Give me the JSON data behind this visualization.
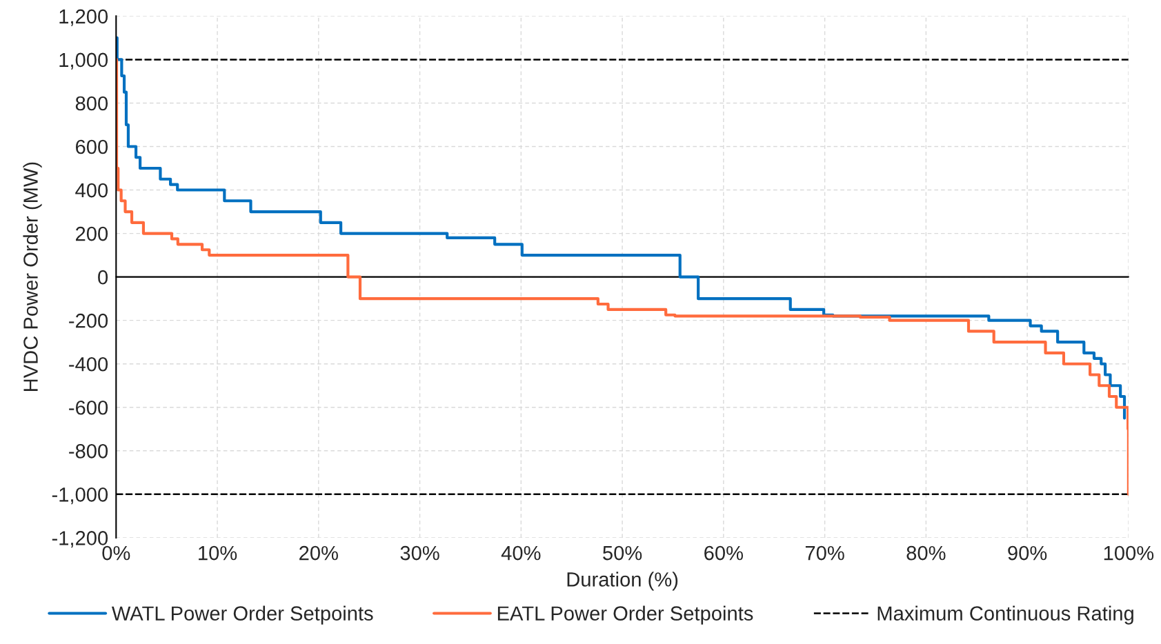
{
  "chart_data": {
    "type": "step",
    "xlabel": "Duration (%)",
    "ylabel": "HVDC Power Order (MW)",
    "xlim": [
      0,
      100
    ],
    "ylim": [
      -1200,
      1200
    ],
    "xticks": [
      {
        "value": 0,
        "label": "0%"
      },
      {
        "value": 10,
        "label": "10%"
      },
      {
        "value": 20,
        "label": "20%"
      },
      {
        "value": 30,
        "label": "30%"
      },
      {
        "value": 40,
        "label": "40%"
      },
      {
        "value": 50,
        "label": "50%"
      },
      {
        "value": 60,
        "label": "60%"
      },
      {
        "value": 70,
        "label": "70%"
      },
      {
        "value": 80,
        "label": "80%"
      },
      {
        "value": 90,
        "label": "90%"
      },
      {
        "value": 100,
        "label": "100%"
      }
    ],
    "yticks": [
      {
        "value": -1200,
        "label": "-1,200"
      },
      {
        "value": -1000,
        "label": "-1,000"
      },
      -800,
      -600,
      -400,
      -200,
      0,
      200,
      400,
      600,
      800,
      {
        "value": 1000,
        "label": "1,000"
      },
      {
        "value": 1200,
        "label": "1,200"
      }
    ],
    "grid": true,
    "legend": "bottom",
    "line_style": "solid",
    "marker": "none",
    "series": [
      {
        "name": "WATL Power Order Setpoints",
        "color": "#0070c0",
        "x": [
          0,
          0.1,
          0.55,
          0.8,
          1.0,
          1.2,
          1.96,
          2.37,
          4.37,
          5.37,
          6.06,
          10.7,
          13.3,
          20.2,
          22.2,
          32.7,
          37.4,
          40.1,
          55.7,
          57.5,
          66.6,
          69.9,
          70.8,
          86.2,
          90.3,
          91.4,
          93.0,
          95.6,
          96.6,
          97.3,
          97.7,
          98.2,
          99.2,
          99.6
        ],
        "values": [
          1100,
          1000,
          925,
          850,
          700,
          600,
          550,
          500,
          450,
          425,
          400,
          350,
          300,
          250,
          200,
          180,
          150,
          100,
          0,
          -100,
          -150,
          -175,
          -180,
          -200,
          -225,
          -250,
          -300,
          -350,
          -375,
          -400,
          -450,
          -500,
          -550,
          -650
        ]
      },
      {
        "name": "Maximum Continuous Rating",
        "type": "line",
        "line_style": "dashed",
        "color": "#000000",
        "x": [
          0,
          100
        ],
        "values": [
          1000,
          1000
        ]
      },
      {
        "type": "line",
        "line_style": "dashed",
        "color": "#000000",
        "x": [
          0,
          100
        ],
        "values": [
          -1000,
          -1000
        ]
      },
      {
        "name": "EATL Power Order Setpoints",
        "color": "#ff6b3d",
        "x": [
          0,
          0.05,
          0.2,
          0.5,
          0.9,
          1.55,
          2.7,
          5.5,
          6.1,
          8.5,
          9.2,
          22.9,
          24.1,
          47.6,
          48.6,
          54.3,
          55.2,
          73.5,
          76.4,
          84.2,
          86.7,
          91.8,
          93.6,
          96.2,
          97.1,
          98.1,
          98.8,
          99.95,
          100
        ],
        "values": [
          1000,
          500,
          400,
          350,
          300,
          250,
          200,
          175,
          150,
          125,
          100,
          0,
          -100,
          -125,
          -150,
          -175,
          -180,
          -185,
          -200,
          -250,
          -300,
          -350,
          -400,
          -450,
          -500,
          -550,
          -600,
          -700,
          -1000
        ]
      }
    ],
    "ref_lines": [
      {
        "axis": "y",
        "value": 0,
        "color": "#000000",
        "line_style": "solid"
      }
    ]
  }
}
